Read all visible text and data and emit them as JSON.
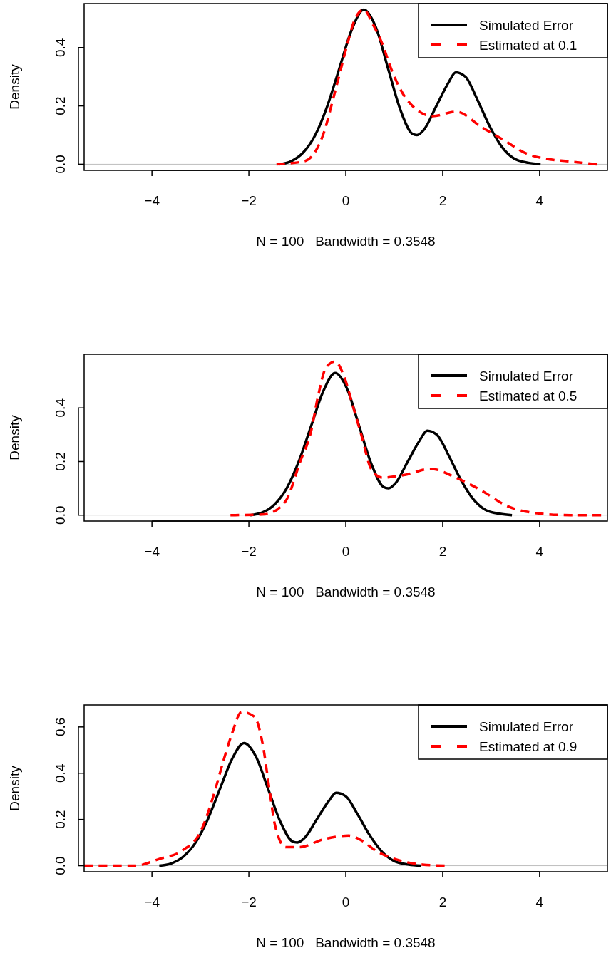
{
  "chart_data": [
    {
      "type": "line",
      "xlabel": "N = 100   Bandwidth = 0.3548",
      "ylabel": "Density",
      "legend": "top right",
      "xlim": [
        -5.4,
        5.4
      ],
      "ylim": [
        -0.021,
        0.551
      ],
      "xticks": [
        -4,
        -2,
        0,
        2,
        4
      ],
      "yticks": [
        {
          "value": 0,
          "label": "0.0"
        },
        {
          "value": 0.2,
          "label": "0.2"
        },
        {
          "value": 0.4,
          "label": "0.4"
        }
      ],
      "ref_lines": [
        {
          "axis": "y",
          "value": 0,
          "color": "#bebebe"
        }
      ],
      "series": [
        {
          "name": "Simulated Error",
          "color": "#000000",
          "line_style": "solid",
          "x": [
            -1.38,
            -1.13,
            -0.88,
            -0.63,
            -0.38,
            -0.13,
            0.12,
            0.37,
            0.62,
            0.87,
            1.12,
            1.37,
            1.47,
            1.62,
            1.87,
            2.12,
            2.27,
            2.47,
            2.72,
            2.97,
            3.22,
            3.47,
            3.77,
            4.02
          ],
          "values": [
            0,
            0.01,
            0.04,
            0.1,
            0.2,
            0.33,
            0.46,
            0.53,
            0.47,
            0.33,
            0.19,
            0.105,
            0.1,
            0.12,
            0.2,
            0.28,
            0.315,
            0.3,
            0.22,
            0.13,
            0.06,
            0.02,
            0.005,
            0
          ]
        },
        {
          "name": "Estimated at 0.1",
          "color": "#ff0000",
          "line_style": "dashed",
          "x": [
            -1.43,
            -0.86,
            -0.47,
            -0.22,
            0.03,
            0.17,
            0.37,
            0.56,
            0.76,
            0.93,
            1.15,
            1.44,
            1.79,
            2.28,
            2.82,
            3.21,
            3.75,
            4.09,
            4.59,
            5.18
          ],
          "values": [
            0,
            0.01,
            0.1,
            0.25,
            0.41,
            0.49,
            0.53,
            0.48,
            0.41,
            0.33,
            0.25,
            0.19,
            0.165,
            0.18,
            0.125,
            0.088,
            0.035,
            0.02,
            0.01,
            0
          ]
        }
      ]
    },
    {
      "type": "line",
      "xlabel": "N = 100   Bandwidth = 0.3548",
      "ylabel": "Density",
      "legend": "top right",
      "xlim": [
        -5.4,
        5.4
      ],
      "ylim": [
        -0.022,
        0.6
      ],
      "xticks": [
        -4,
        -2,
        0,
        2,
        4
      ],
      "yticks": [
        {
          "value": 0,
          "label": "0.0"
        },
        {
          "value": 0.2,
          "label": "0.2"
        },
        {
          "value": 0.4,
          "label": "0.4"
        }
      ],
      "ref_lines": [
        {
          "axis": "y",
          "value": 0,
          "color": "#bebebe"
        }
      ],
      "series": [
        {
          "name": "Simulated Error",
          "color": "#000000",
          "line_style": "solid",
          "x": [
            -1.97,
            -1.72,
            -1.47,
            -1.22,
            -0.97,
            -0.72,
            -0.47,
            -0.22,
            0.03,
            0.28,
            0.53,
            0.78,
            0.88,
            1.03,
            1.28,
            1.53,
            1.68,
            1.88,
            2.13,
            2.38,
            2.63,
            2.88,
            3.18,
            3.43
          ],
          "values": [
            0,
            0.01,
            0.04,
            0.1,
            0.2,
            0.33,
            0.46,
            0.53,
            0.47,
            0.33,
            0.19,
            0.105,
            0.1,
            0.12,
            0.2,
            0.28,
            0.315,
            0.3,
            0.22,
            0.13,
            0.06,
            0.02,
            0.005,
            0
          ]
        },
        {
          "name": "Estimated at 0.5",
          "color": "#ff0000",
          "line_style": "dashed",
          "x": [
            -2.38,
            -1.67,
            -1.25,
            -0.94,
            -0.72,
            -0.57,
            -0.41,
            -0.22,
            -0.04,
            0.15,
            0.32,
            0.53,
            0.75,
            1.22,
            1.75,
            2.27,
            2.79,
            3.32,
            4.0,
            4.63,
            5.27
          ],
          "values": [
            0,
            0.003,
            0.05,
            0.2,
            0.31,
            0.445,
            0.55,
            0.573,
            0.52,
            0.405,
            0.3,
            0.17,
            0.14,
            0.15,
            0.173,
            0.14,
            0.093,
            0.035,
            0.006,
            0,
            0
          ]
        }
      ]
    },
    {
      "type": "line",
      "xlabel": "N = 100   Bandwidth = 0.3548",
      "ylabel": "Density",
      "legend": "top right",
      "xlim": [
        -5.4,
        5.4
      ],
      "ylim": [
        -0.026,
        0.695
      ],
      "xticks": [
        -4,
        -2,
        0,
        2,
        4
      ],
      "yticks": [
        {
          "value": 0,
          "label": "0.0"
        },
        {
          "value": 0.2,
          "label": "0.2"
        },
        {
          "value": 0.4,
          "label": "0.4"
        },
        {
          "value": 0.6,
          "label": "0.6"
        }
      ],
      "ref_lines": [
        {
          "axis": "y",
          "value": 0,
          "color": "#bebebe"
        }
      ],
      "series": [
        {
          "name": "Simulated Error",
          "color": "#000000",
          "line_style": "solid",
          "x": [
            -3.85,
            -3.6,
            -3.35,
            -3.1,
            -2.85,
            -2.6,
            -2.35,
            -2.1,
            -1.85,
            -1.6,
            -1.35,
            -1.1,
            -1.0,
            -0.85,
            -0.6,
            -0.35,
            -0.2,
            0.0,
            0.25,
            0.5,
            0.75,
            1.0,
            1.3,
            1.55
          ],
          "values": [
            0,
            0.01,
            0.04,
            0.1,
            0.2,
            0.33,
            0.46,
            0.53,
            0.47,
            0.33,
            0.19,
            0.105,
            0.1,
            0.12,
            0.2,
            0.28,
            0.315,
            0.3,
            0.22,
            0.13,
            0.06,
            0.02,
            0.005,
            0
          ]
        },
        {
          "name": "Estimated at 0.9",
          "color": "#ff0000",
          "line_style": "dashed",
          "x": [
            -5.4,
            -4.35,
            -3.84,
            -3.38,
            -2.99,
            -2.72,
            -2.53,
            -2.35,
            -2.15,
            -1.89,
            -1.71,
            -1.58,
            -1.46,
            -1.24,
            -0.96,
            -0.45,
            0.06,
            0.32,
            0.62,
            1.07,
            1.58,
            2.04
          ],
          "values": [
            0,
            0,
            0.03,
            0.065,
            0.15,
            0.31,
            0.45,
            0.57,
            0.665,
            0.645,
            0.52,
            0.335,
            0.175,
            0.08,
            0.08,
            0.115,
            0.13,
            0.11,
            0.065,
            0.025,
            0.005,
            0
          ]
        }
      ]
    }
  ]
}
